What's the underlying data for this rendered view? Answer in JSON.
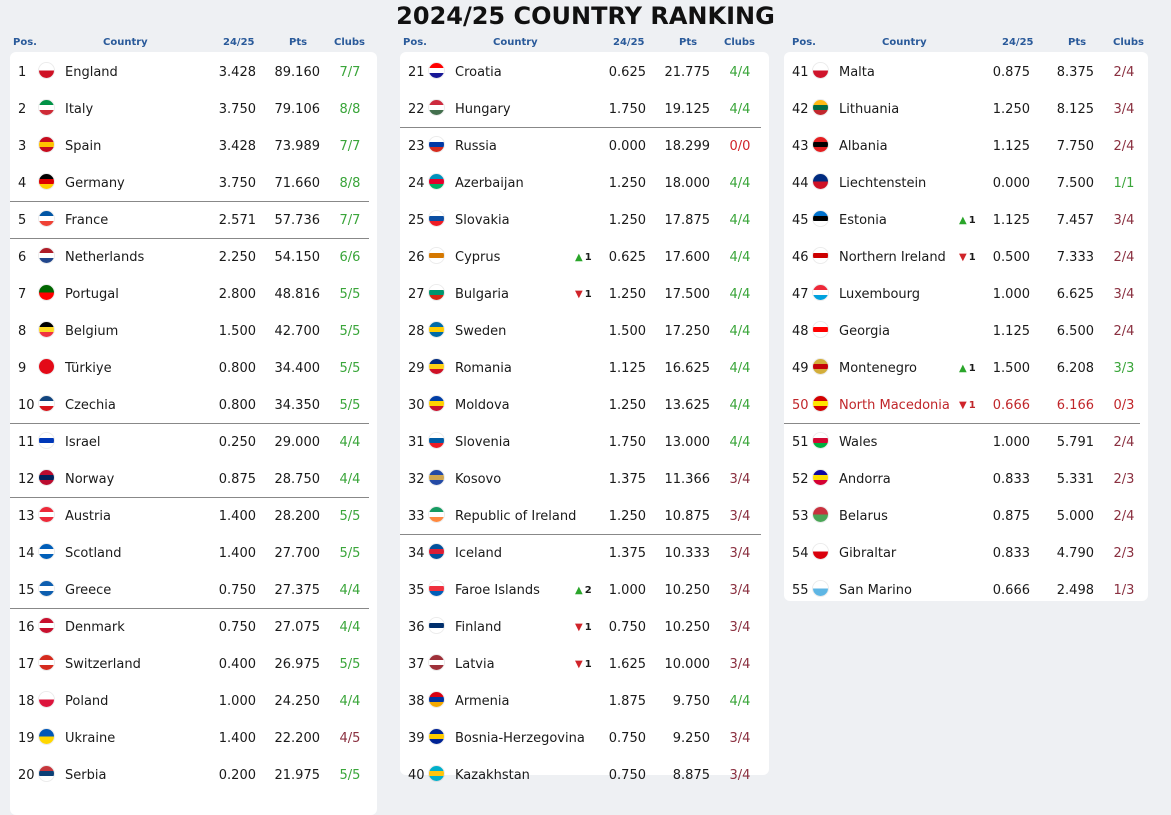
{
  "title": "2024/25 COUNTRY RANKING",
  "headers": {
    "pos": "Pos.",
    "country": "Country",
    "season": "24/25",
    "pts": "Pts",
    "clubs": "Clubs"
  },
  "columns": [
    {
      "rows": [
        {
          "pos": "1",
          "country": "England",
          "season": "3.428",
          "pts": "89.160",
          "clubs": "7/7",
          "flag": [
            "#ffffff",
            "#ce1124"
          ],
          "cs": "good"
        },
        {
          "pos": "2",
          "country": "Italy",
          "season": "3.750",
          "pts": "79.106",
          "clubs": "8/8",
          "flag": [
            "#009246",
            "#ffffff",
            "#ce2b37"
          ],
          "cs": "good"
        },
        {
          "pos": "3",
          "country": "Spain",
          "season": "3.428",
          "pts": "73.989",
          "clubs": "7/7",
          "flag": [
            "#c60b1e",
            "#ffc400",
            "#c60b1e"
          ],
          "cs": "good"
        },
        {
          "pos": "4",
          "country": "Germany",
          "season": "3.750",
          "pts": "71.660",
          "clubs": "8/8",
          "flag": [
            "#000000",
            "#dd0000",
            "#ffce00"
          ],
          "cs": "good",
          "sep": true
        },
        {
          "pos": "5",
          "country": "France",
          "season": "2.571",
          "pts": "57.736",
          "clubs": "7/7",
          "flag": [
            "#0055a4",
            "#ffffff",
            "#ef4135"
          ],
          "cs": "good",
          "sep": true
        },
        {
          "pos": "6",
          "country": "Netherlands",
          "season": "2.250",
          "pts": "54.150",
          "clubs": "6/6",
          "flag": [
            "#ae1c28",
            "#ffffff",
            "#21468b"
          ],
          "cs": "good"
        },
        {
          "pos": "7",
          "country": "Portugal",
          "season": "2.800",
          "pts": "48.816",
          "clubs": "5/5",
          "flag": [
            "#006600",
            "#ff0000"
          ],
          "cs": "good"
        },
        {
          "pos": "8",
          "country": "Belgium",
          "season": "1.500",
          "pts": "42.700",
          "clubs": "5/5",
          "flag": [
            "#000000",
            "#fdda24",
            "#ef3340"
          ],
          "cs": "good"
        },
        {
          "pos": "9",
          "country": "Türkiye",
          "season": "0.800",
          "pts": "34.400",
          "clubs": "5/5",
          "flag": [
            "#e30a17",
            "#e30a17"
          ],
          "cs": "good"
        },
        {
          "pos": "10",
          "country": "Czechia",
          "season": "0.800",
          "pts": "34.350",
          "clubs": "5/5",
          "flag": [
            "#11457e",
            "#ffffff",
            "#d7141a"
          ],
          "cs": "good",
          "sep": true
        },
        {
          "pos": "11",
          "country": "Israel",
          "season": "0.250",
          "pts": "29.000",
          "clubs": "4/4",
          "flag": [
            "#ffffff",
            "#0038b8",
            "#ffffff"
          ],
          "cs": "good"
        },
        {
          "pos": "12",
          "country": "Norway",
          "season": "0.875",
          "pts": "28.750",
          "clubs": "4/4",
          "flag": [
            "#ba0c2f",
            "#00205b",
            "#ba0c2f"
          ],
          "cs": "good",
          "sep": true
        },
        {
          "pos": "13",
          "country": "Austria",
          "season": "1.400",
          "pts": "28.200",
          "clubs": "5/5",
          "flag": [
            "#ed2939",
            "#ffffff",
            "#ed2939"
          ],
          "cs": "good"
        },
        {
          "pos": "14",
          "country": "Scotland",
          "season": "1.400",
          "pts": "27.700",
          "clubs": "5/5",
          "flag": [
            "#005eb8",
            "#ffffff",
            "#005eb8"
          ],
          "cs": "good"
        },
        {
          "pos": "15",
          "country": "Greece",
          "season": "0.750",
          "pts": "27.375",
          "clubs": "4/4",
          "flag": [
            "#0d5eaf",
            "#ffffff",
            "#0d5eaf"
          ],
          "cs": "good",
          "sep": true
        },
        {
          "pos": "16",
          "country": "Denmark",
          "season": "0.750",
          "pts": "27.075",
          "clubs": "4/4",
          "flag": [
            "#c8102e",
            "#ffffff",
            "#c8102e"
          ],
          "cs": "good"
        },
        {
          "pos": "17",
          "country": "Switzerland",
          "season": "0.400",
          "pts": "26.975",
          "clubs": "5/5",
          "flag": [
            "#d52b1e",
            "#ffffff",
            "#d52b1e"
          ],
          "cs": "good"
        },
        {
          "pos": "18",
          "country": "Poland",
          "season": "1.000",
          "pts": "24.250",
          "clubs": "4/4",
          "flag": [
            "#ffffff",
            "#dc143c"
          ],
          "cs": "good"
        },
        {
          "pos": "19",
          "country": "Ukraine",
          "season": "1.400",
          "pts": "22.200",
          "clubs": "4/5",
          "flag": [
            "#0057b7",
            "#ffd700"
          ],
          "cs": "mid"
        },
        {
          "pos": "20",
          "country": "Serbia",
          "season": "0.200",
          "pts": "21.975",
          "clubs": "5/5",
          "flag": [
            "#c6363c",
            "#0c4076",
            "#ffffff"
          ],
          "cs": "good"
        }
      ]
    },
    {
      "rows": [
        {
          "pos": "21",
          "country": "Croatia",
          "season": "0.625",
          "pts": "21.775",
          "clubs": "4/4",
          "flag": [
            "#ff0000",
            "#ffffff",
            "#171796"
          ],
          "cs": "good"
        },
        {
          "pos": "22",
          "country": "Hungary",
          "season": "1.750",
          "pts": "19.125",
          "clubs": "4/4",
          "flag": [
            "#cd2a3e",
            "#ffffff",
            "#436f4d"
          ],
          "cs": "good",
          "sep": true
        },
        {
          "pos": "23",
          "country": "Russia",
          "season": "0.000",
          "pts": "18.299",
          "clubs": "0/0",
          "flag": [
            "#ffffff",
            "#0039a6",
            "#d52b1e"
          ],
          "cs": "bad"
        },
        {
          "pos": "24",
          "country": "Azerbaijan",
          "season": "1.250",
          "pts": "18.000",
          "clubs": "4/4",
          "flag": [
            "#0092bc",
            "#e4002b",
            "#00af66"
          ],
          "cs": "good"
        },
        {
          "pos": "25",
          "country": "Slovakia",
          "season": "1.250",
          "pts": "17.875",
          "clubs": "4/4",
          "flag": [
            "#ffffff",
            "#0b4ea2",
            "#ee1c25"
          ],
          "cs": "good"
        },
        {
          "pos": "26",
          "country": "Cyprus",
          "season": "0.625",
          "pts": "17.600",
          "clubs": "4/4",
          "flag": [
            "#ffffff",
            "#d57800",
            "#ffffff"
          ],
          "cs": "good",
          "chg": "1",
          "dir": "up"
        },
        {
          "pos": "27",
          "country": "Bulgaria",
          "season": "1.250",
          "pts": "17.500",
          "clubs": "4/4",
          "flag": [
            "#ffffff",
            "#00966e",
            "#d62612"
          ],
          "cs": "good",
          "chg": "1",
          "dir": "down"
        },
        {
          "pos": "28",
          "country": "Sweden",
          "season": "1.500",
          "pts": "17.250",
          "clubs": "4/4",
          "flag": [
            "#006aa7",
            "#fecc00",
            "#006aa7"
          ],
          "cs": "good"
        },
        {
          "pos": "29",
          "country": "Romania",
          "season": "1.125",
          "pts": "16.625",
          "clubs": "4/4",
          "flag": [
            "#002b7f",
            "#fcd116",
            "#ce1126"
          ],
          "cs": "good"
        },
        {
          "pos": "30",
          "country": "Moldova",
          "season": "1.250",
          "pts": "13.625",
          "clubs": "4/4",
          "flag": [
            "#003da5",
            "#ffd100",
            "#c8102e"
          ],
          "cs": "good"
        },
        {
          "pos": "31",
          "country": "Slovenia",
          "season": "1.750",
          "pts": "13.000",
          "clubs": "4/4",
          "flag": [
            "#ffffff",
            "#005da4",
            "#ed1c24"
          ],
          "cs": "good"
        },
        {
          "pos": "32",
          "country": "Kosovo",
          "season": "1.375",
          "pts": "11.366",
          "clubs": "3/4",
          "flag": [
            "#244aa5",
            "#d0a650",
            "#244aa5"
          ],
          "cs": "mid"
        },
        {
          "pos": "33",
          "country": "Republic of Ireland",
          "season": "1.250",
          "pts": "10.875",
          "clubs": "3/4",
          "flag": [
            "#169b62",
            "#ffffff",
            "#ff883e"
          ],
          "cs": "mid",
          "sep": true
        },
        {
          "pos": "34",
          "country": "Iceland",
          "season": "1.375",
          "pts": "10.333",
          "clubs": "3/4",
          "flag": [
            "#02529c",
            "#dc1e35",
            "#02529c"
          ],
          "cs": "mid"
        },
        {
          "pos": "35",
          "country": "Faroe Islands",
          "season": "1.000",
          "pts": "10.250",
          "clubs": "3/4",
          "flag": [
            "#ffffff",
            "#ef303e",
            "#005eb8"
          ],
          "cs": "mid",
          "chg": "2",
          "dir": "up"
        },
        {
          "pos": "36",
          "country": "Finland",
          "season": "0.750",
          "pts": "10.250",
          "clubs": "3/4",
          "flag": [
            "#ffffff",
            "#002f6c",
            "#ffffff"
          ],
          "cs": "mid",
          "chg": "1",
          "dir": "down"
        },
        {
          "pos": "37",
          "country": "Latvia",
          "season": "1.625",
          "pts": "10.000",
          "clubs": "3/4",
          "flag": [
            "#9e3039",
            "#ffffff",
            "#9e3039"
          ],
          "cs": "mid",
          "chg": "1",
          "dir": "down"
        },
        {
          "pos": "38",
          "country": "Armenia",
          "season": "1.875",
          "pts": "9.750",
          "clubs": "4/4",
          "flag": [
            "#d90012",
            "#0033a0",
            "#f2a800"
          ],
          "cs": "good"
        },
        {
          "pos": "39",
          "country": "Bosnia-Herzegovina",
          "season": "0.750",
          "pts": "9.250",
          "clubs": "3/4",
          "flag": [
            "#002395",
            "#fecb00",
            "#002395"
          ],
          "cs": "mid"
        },
        {
          "pos": "40",
          "country": "Kazakhstan",
          "season": "0.750",
          "pts": "8.875",
          "clubs": "3/4",
          "flag": [
            "#00afca",
            "#fec50c",
            "#00afca"
          ],
          "cs": "mid"
        }
      ]
    },
    {
      "rows": [
        {
          "pos": "41",
          "country": "Malta",
          "season": "0.875",
          "pts": "8.375",
          "clubs": "2/4",
          "flag": [
            "#ffffff",
            "#cf142b"
          ],
          "cs": "mid"
        },
        {
          "pos": "42",
          "country": "Lithuania",
          "season": "1.250",
          "pts": "8.125",
          "clubs": "3/4",
          "flag": [
            "#fdb913",
            "#006a44",
            "#c1272d"
          ],
          "cs": "mid"
        },
        {
          "pos": "43",
          "country": "Albania",
          "season": "1.125",
          "pts": "7.750",
          "clubs": "2/4",
          "flag": [
            "#e41e20",
            "#000000",
            "#e41e20"
          ],
          "cs": "mid"
        },
        {
          "pos": "44",
          "country": "Liechtenstein",
          "season": "0.000",
          "pts": "7.500",
          "clubs": "1/1",
          "flag": [
            "#002b7f",
            "#ce1126"
          ],
          "cs": "good"
        },
        {
          "pos": "45",
          "country": "Estonia",
          "season": "1.125",
          "pts": "7.457",
          "clubs": "3/4",
          "flag": [
            "#0072ce",
            "#000000",
            "#ffffff"
          ],
          "cs": "mid",
          "chg": "1",
          "dir": "up"
        },
        {
          "pos": "46",
          "country": "Northern Ireland",
          "season": "0.500",
          "pts": "7.333",
          "clubs": "2/4",
          "flag": [
            "#ffffff",
            "#cc0000",
            "#ffffff"
          ],
          "cs": "mid",
          "chg": "1",
          "dir": "down"
        },
        {
          "pos": "47",
          "country": "Luxembourg",
          "season": "1.000",
          "pts": "6.625",
          "clubs": "3/4",
          "flag": [
            "#ed2939",
            "#ffffff",
            "#00a1de"
          ],
          "cs": "mid"
        },
        {
          "pos": "48",
          "country": "Georgia",
          "season": "1.125",
          "pts": "6.500",
          "clubs": "2/4",
          "flag": [
            "#ffffff",
            "#ff0000",
            "#ffffff"
          ],
          "cs": "mid"
        },
        {
          "pos": "49",
          "country": "Montenegro",
          "season": "1.500",
          "pts": "6.208",
          "clubs": "3/3",
          "flag": [
            "#d3ae3b",
            "#c40308",
            "#d3ae3b"
          ],
          "cs": "good",
          "chg": "1",
          "dir": "up"
        },
        {
          "pos": "50",
          "country": "North Macedonia",
          "season": "0.666",
          "pts": "6.166",
          "clubs": "0/3",
          "flag": [
            "#d20000",
            "#ffe600",
            "#d20000"
          ],
          "cs": "bad",
          "chg": "1",
          "dir": "down",
          "hl": true,
          "sep": true
        },
        {
          "pos": "51",
          "country": "Wales",
          "season": "1.000",
          "pts": "5.791",
          "clubs": "2/4",
          "flag": [
            "#ffffff",
            "#d30731",
            "#00b140"
          ],
          "cs": "mid"
        },
        {
          "pos": "52",
          "country": "Andorra",
          "season": "0.833",
          "pts": "5.331",
          "clubs": "2/3",
          "flag": [
            "#10069f",
            "#fedd00",
            "#d50032"
          ],
          "cs": "mid"
        },
        {
          "pos": "53",
          "country": "Belarus",
          "season": "0.875",
          "pts": "5.000",
          "clubs": "2/4",
          "flag": [
            "#c8313e",
            "#4aa657"
          ],
          "cs": "mid"
        },
        {
          "pos": "54",
          "country": "Gibraltar",
          "season": "0.833",
          "pts": "4.790",
          "clubs": "2/3",
          "flag": [
            "#ffffff",
            "#da000c"
          ],
          "cs": "mid"
        },
        {
          "pos": "55",
          "country": "San Marino",
          "season": "0.666",
          "pts": "2.498",
          "clubs": "1/3",
          "flag": [
            "#ffffff",
            "#5eb6e4"
          ],
          "cs": "mid"
        }
      ]
    }
  ],
  "arrows": {
    "up": "▲",
    "down": "▼"
  }
}
